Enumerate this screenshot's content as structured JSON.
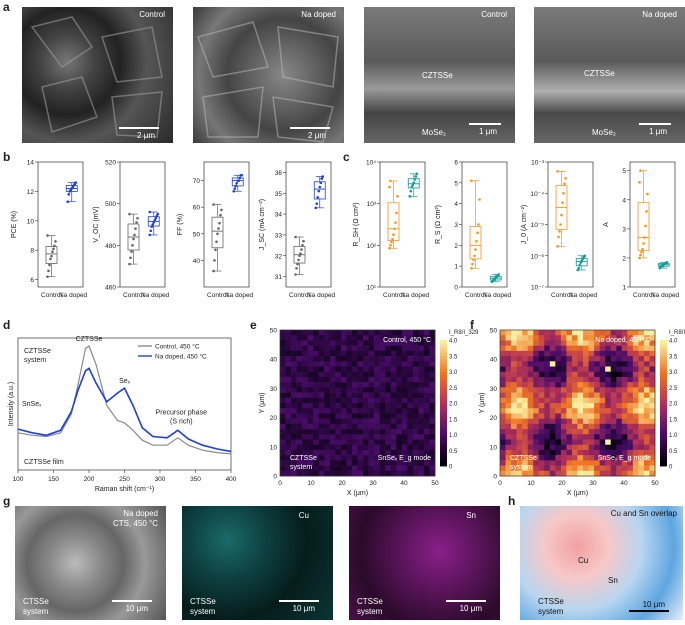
{
  "panel_labels": {
    "a": "a",
    "b": "b",
    "c": "c",
    "d": "d",
    "e": "e",
    "f": "f",
    "g": "g",
    "h": "h"
  },
  "sem_top": {
    "img1": {
      "label": "Control",
      "scale": "2 μm"
    },
    "img2": {
      "label": "Na doped",
      "scale": "2 μm"
    },
    "img3": {
      "label": "Control",
      "layer1": "CZTSSe",
      "layer2": "MoSe₂",
      "scale": "1 μm"
    },
    "img4": {
      "label": "Na doped",
      "layer1": "CZTSSe",
      "layer2": "MoSe₂",
      "scale": "1 μm"
    }
  },
  "colors": {
    "control": "#8a8a8a",
    "na_doped": "#1e3fe0",
    "rs_color": "#f0961f",
    "teal": "#109d96"
  },
  "chart_data": [
    {
      "type": "box",
      "panel": "b",
      "ylabel": "PCE (%)",
      "ylim": [
        5.5,
        14
      ],
      "yticks": [
        "6",
        "8",
        "10",
        "12",
        "14"
      ],
      "categories": [
        "Control",
        "Na doped"
      ],
      "series": [
        {
          "name": "Control",
          "points": [
            6.2,
            6.6,
            7.0,
            7.4,
            7.6,
            7.9,
            8.1,
            8.3,
            8.6,
            9.0
          ]
        },
        {
          "name": "Na doped",
          "points": [
            11.3,
            11.8,
            12.0,
            12.1,
            12.2,
            12.3,
            12.4,
            12.5,
            12.6
          ]
        }
      ]
    },
    {
      "type": "box",
      "panel": "b",
      "ylabel": "V_OC (mV)",
      "ylim": [
        460,
        520
      ],
      "yticks": [
        "460",
        "480",
        "500",
        "520"
      ],
      "categories": [
        "Control",
        "Na doped"
      ],
      "series": [
        {
          "name": "Control",
          "points": [
            471,
            474,
            477,
            480,
            483,
            485,
            488,
            491,
            493,
            495
          ]
        },
        {
          "name": "Na doped",
          "points": [
            485,
            487,
            489,
            490,
            491,
            492,
            493,
            494,
            495,
            496
          ]
        }
      ]
    },
    {
      "type": "box",
      "panel": "b",
      "ylabel": "FF (%)",
      "ylim": [
        30,
        77
      ],
      "yticks": [
        "40",
        "50",
        "60",
        "70"
      ],
      "categories": [
        "Control",
        "Na doped"
      ],
      "series": [
        {
          "name": "Control",
          "points": [
            36,
            40,
            44,
            47,
            50,
            52,
            54,
            57,
            59,
            61
          ]
        },
        {
          "name": "Na doped",
          "points": [
            66,
            67,
            68,
            69,
            70,
            70,
            71,
            72,
            72
          ]
        }
      ]
    },
    {
      "type": "box",
      "panel": "b",
      "ylabel": "J_SC (mA cm⁻²)",
      "ylim": [
        30.5,
        36.5
      ],
      "yticks": [
        "31",
        "32",
        "33",
        "34",
        "35",
        "36"
      ],
      "categories": [
        "Control",
        "Na doped"
      ],
      "series": [
        {
          "name": "Control",
          "points": [
            31.1,
            31.4,
            31.6,
            31.8,
            32.0,
            32.1,
            32.3,
            32.5,
            32.7,
            32.9
          ]
        },
        {
          "name": "Na doped",
          "points": [
            34.3,
            34.5,
            34.8,
            35.1,
            35.3,
            35.5,
            35.7,
            35.8
          ]
        }
      ]
    },
    {
      "type": "box",
      "panel": "c",
      "ylabel": "R_SH (Ω cm²)",
      "scale": "log",
      "ylim": [
        10,
        10000
      ],
      "yticks": [
        "10¹",
        "10²",
        "10³",
        "10⁴"
      ],
      "categories": [
        "Control",
        "Na doped"
      ],
      "series": [
        {
          "name": "Control",
          "points": [
            85,
            100,
            120,
            140,
            180,
            250,
            350,
            600,
            1500,
            2500,
            3500
          ]
        },
        {
          "name": "Na doped",
          "points": [
            1500,
            2000,
            2500,
            2800,
            3200,
            3800,
            4500,
            5200
          ]
        }
      ]
    },
    {
      "type": "box",
      "panel": "c",
      "ylabel": "R_S (Ω cm²)",
      "ylim": [
        0,
        6
      ],
      "yticks": [
        "0",
        "1",
        "2",
        "3",
        "4",
        "5",
        "6"
      ],
      "categories": [
        "Control",
        "Na doped"
      ],
      "series": [
        {
          "name": "Control",
          "points": [
            0.9,
            1.1,
            1.3,
            1.5,
            1.8,
            2.2,
            2.6,
            3.0,
            4.2,
            5.1
          ]
        },
        {
          "name": "Na doped",
          "points": [
            0.25,
            0.3,
            0.35,
            0.4,
            0.45,
            0.5,
            0.55,
            0.6
          ]
        }
      ]
    },
    {
      "type": "box",
      "panel": "c",
      "ylabel": "J_0 (A cm⁻²)",
      "scale": "log",
      "ylim": [
        1e-07,
        0.001
      ],
      "yticks": [
        "10⁻⁷",
        "10⁻⁶",
        "10⁻⁵",
        "10⁻⁴",
        "10⁻³"
      ],
      "categories": [
        "Control",
        "Na doped"
      ],
      "series": [
        {
          "name": "Control",
          "points": [
            2e-06,
            4e-06,
            6e-06,
            1e-05,
            2e-05,
            5e-05,
            0.0001,
            0.0002,
            0.0003,
            0.0005
          ]
        },
        {
          "name": "Na doped",
          "points": [
            3.5e-07,
            4e-07,
            5e-07,
            6e-07,
            7e-07,
            8e-07,
            9e-07,
            1e-06
          ]
        }
      ]
    },
    {
      "type": "box",
      "panel": "c",
      "ylabel": "A",
      "ylim": [
        1,
        5.3
      ],
      "yticks": [
        "1",
        "2",
        "3",
        "4",
        "5"
      ],
      "categories": [
        "Control",
        "Na doped"
      ],
      "series": [
        {
          "name": "Control",
          "points": [
            2.0,
            2.1,
            2.2,
            2.3,
            2.5,
            2.7,
            3.1,
            3.6,
            4.2,
            4.6,
            5.0
          ]
        },
        {
          "name": "Na doped",
          "points": [
            1.65,
            1.7,
            1.72,
            1.75,
            1.78,
            1.8,
            1.82,
            1.85
          ]
        }
      ]
    },
    {
      "type": "line",
      "panel": "d",
      "xlabel": "Raman shift (cm⁻¹)",
      "ylabel": "Intensity (a.u.)",
      "xlim": [
        100,
        400
      ],
      "xticks": [
        "100",
        "150",
        "200",
        "250",
        "300",
        "350",
        "400"
      ],
      "legend": [
        "Control, 450 °C",
        "Na doped, 450 °C"
      ],
      "annotations": {
        "czts_top": "CZTSSe",
        "czts_sys1": "CZTSSe",
        "czts_sys2": "system",
        "snse": "SnSeₓ",
        "sex": "Seₓ",
        "prec1": "Precursor phase",
        "prec2": "(S rich)",
        "film": "CZTSSe film"
      },
      "series": [
        {
          "name": "Control, 450 °C",
          "x": [
            100,
            120,
            140,
            160,
            175,
            185,
            195,
            200,
            210,
            225,
            240,
            250,
            262,
            275,
            290,
            310,
            325,
            340,
            360,
            380,
            400
          ],
          "y": [
            0.3,
            0.28,
            0.27,
            0.3,
            0.45,
            0.7,
            0.98,
            1.0,
            0.85,
            0.52,
            0.4,
            0.38,
            0.32,
            0.24,
            0.2,
            0.2,
            0.26,
            0.2,
            0.16,
            0.14,
            0.13
          ]
        },
        {
          "name": "Na doped, 450 °C",
          "x": [
            100,
            120,
            140,
            160,
            175,
            185,
            195,
            200,
            210,
            225,
            240,
            250,
            262,
            275,
            290,
            310,
            325,
            340,
            360,
            380,
            400
          ],
          "y": [
            0.33,
            0.3,
            0.28,
            0.32,
            0.47,
            0.65,
            0.8,
            0.82,
            0.7,
            0.55,
            0.62,
            0.66,
            0.52,
            0.34,
            0.27,
            0.26,
            0.32,
            0.25,
            0.2,
            0.17,
            0.15
          ]
        }
      ]
    },
    {
      "type": "heatmap",
      "panel": "e",
      "title": "Control, 450 °C",
      "xlabel": "X (μm)",
      "ylabel": "Y (μm)",
      "xticks": [
        "0",
        "10",
        "20",
        "30",
        "40",
        "50"
      ],
      "yticks": [
        "0",
        "10",
        "20",
        "30",
        "40",
        "50"
      ],
      "cbar_label": "I_R8/I_329",
      "cbar_ticks": [
        "0",
        "0.5",
        "1.0",
        "1.5",
        "2.0",
        "2.5",
        "3.0",
        "3.5",
        "4.0"
      ],
      "note1": "CZTSSe",
      "note2": "system",
      "mode": "SnSeₓ E_g mode"
    },
    {
      "type": "heatmap",
      "panel": "f",
      "title": "Na doped, 450 °C",
      "xlabel": "X (μm)",
      "ylabel": "Y (μm)",
      "xticks": [
        "0",
        "10",
        "20",
        "30",
        "40",
        "50"
      ],
      "yticks": [
        "0",
        "10",
        "20",
        "30",
        "40",
        "50"
      ],
      "cbar_label": "I_R8/I_329",
      "cbar_ticks": [
        "0",
        "0.5",
        "1.0",
        "1.5",
        "2.0",
        "2.5",
        "3.0",
        "3.5",
        "4.0"
      ],
      "note1": "CZTSSe",
      "note2": "system",
      "mode": "SnSeₓ E_g mode"
    }
  ],
  "sem_bottom": {
    "g1": {
      "label1": "Na doped",
      "label2": "CTS, 450 °C",
      "sys1": "CTSSe",
      "sys2": "system",
      "scale": "10 μm"
    },
    "g2": {
      "label": "Cu",
      "sys1": "CTSSe",
      "sys2": "system",
      "scale": "10 μm"
    },
    "g3": {
      "label": "Sn",
      "sys1": "CTSSe",
      "sys2": "system",
      "scale": "10 μm"
    },
    "h": {
      "label": "Cu and Sn overlap",
      "cu": "Cu",
      "sn": "Sn",
      "sys1": "CTSSe",
      "sys2": "system",
      "scale": "10 μm"
    }
  }
}
